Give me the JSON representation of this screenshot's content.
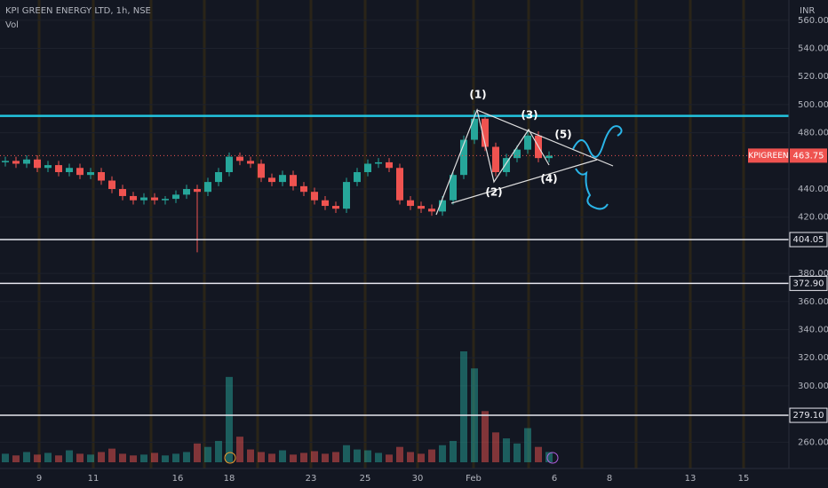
{
  "chart_data": {
    "type": "candlestick",
    "title": "KPI GREEN ENERGY LTD, 1h, NSE",
    "volume_label": "Vol",
    "currency": "INR",
    "up_color": "#26a69a",
    "down_color": "#ef5350",
    "x_labels": [
      "9",
      "11",
      "16",
      "18",
      "23",
      "25",
      "30",
      "Feb",
      "6",
      "8",
      "13",
      "15"
    ],
    "open": [
      459,
      460,
      458,
      461,
      455,
      457,
      452,
      455,
      450,
      452,
      446,
      440,
      435,
      432,
      434,
      432,
      433,
      436,
      440,
      438,
      445,
      452,
      463,
      460,
      458,
      448,
      445,
      450,
      442,
      438,
      432,
      428,
      426,
      445,
      452,
      458,
      459,
      455,
      432,
      428,
      426,
      424,
      432,
      450,
      475,
      490,
      470,
      452,
      462,
      468,
      478,
      462
    ],
    "high": [
      463,
      463,
      464,
      464,
      460,
      460,
      458,
      458,
      455,
      455,
      449,
      443,
      438,
      437,
      437,
      435,
      439,
      443,
      443,
      448,
      455,
      466,
      466,
      463,
      461,
      451,
      453,
      453,
      445,
      441,
      435,
      431,
      448,
      455,
      461,
      462,
      462,
      458,
      435,
      431,
      429,
      435,
      453,
      478,
      496,
      493,
      473,
      465,
      471,
      481,
      481,
      466.75
    ],
    "low": [
      456,
      455,
      455,
      452,
      452,
      449,
      449,
      447,
      447,
      443,
      437,
      432,
      429,
      429,
      429,
      429,
      430,
      433,
      395,
      435,
      442,
      449,
      457,
      455,
      445,
      442,
      442,
      439,
      435,
      429,
      425,
      423,
      423,
      442,
      449,
      455,
      452,
      429,
      425,
      423,
      421,
      421,
      429,
      447,
      472,
      467,
      449,
      449,
      459,
      465,
      459,
      459
    ],
    "close": [
      460,
      458,
      461,
      455,
      457,
      452,
      455,
      450,
      452,
      446,
      440,
      435,
      432,
      434,
      432,
      433,
      436,
      440,
      438,
      445,
      452,
      463,
      460,
      458,
      448,
      445,
      450,
      442,
      438,
      432,
      428,
      426,
      445,
      452,
      458,
      459,
      455,
      432,
      428,
      426,
      424,
      432,
      450,
      475,
      490,
      470,
      452,
      462,
      468,
      478,
      462,
      463.75
    ],
    "volume": [
      10,
      8,
      12,
      9,
      11,
      8,
      14,
      10,
      9,
      12,
      16,
      10,
      8,
      9,
      11,
      8,
      10,
      12,
      22,
      18,
      25,
      100,
      30,
      15,
      12,
      10,
      14,
      9,
      11,
      13,
      10,
      12,
      20,
      15,
      14,
      11,
      9,
      18,
      12,
      10,
      15,
      20,
      25,
      130,
      110,
      60,
      35,
      28,
      22,
      40,
      18,
      12
    ],
    "ylim": [
      245.7,
      574.4
    ],
    "yticks": [
      {
        "value": 560,
        "label": "560.00"
      },
      {
        "value": 540,
        "label": "540.00"
      },
      {
        "value": 520,
        "label": "520.00"
      },
      {
        "value": 500,
        "label": "500.00"
      },
      {
        "value": 480,
        "label": "480.00"
      },
      {
        "value": 440,
        "label": "440.00"
      },
      {
        "value": 420,
        "label": "420.00"
      },
      {
        "value": 380,
        "label": "380.00"
      },
      {
        "value": 360,
        "label": "360.00"
      },
      {
        "value": 340,
        "label": "340.00"
      },
      {
        "value": 320,
        "label": "320.00"
      },
      {
        "value": 300,
        "label": "300.00"
      },
      {
        "value": 260,
        "label": "260.00"
      }
    ],
    "resistance": {
      "value": 492,
      "color": "#22c5e0"
    },
    "levels": [
      {
        "value": 404.05,
        "label": "404.05"
      },
      {
        "value": 372.9,
        "label": "372.90"
      },
      {
        "value": 279.1,
        "label": "279.10"
      }
    ],
    "last_price": {
      "name": "KPIGREEN",
      "value": 463.75,
      "label": "463.75"
    },
    "annotations": [
      "(1)",
      "(2)",
      "(3)",
      "(4)",
      "(5)"
    ]
  }
}
